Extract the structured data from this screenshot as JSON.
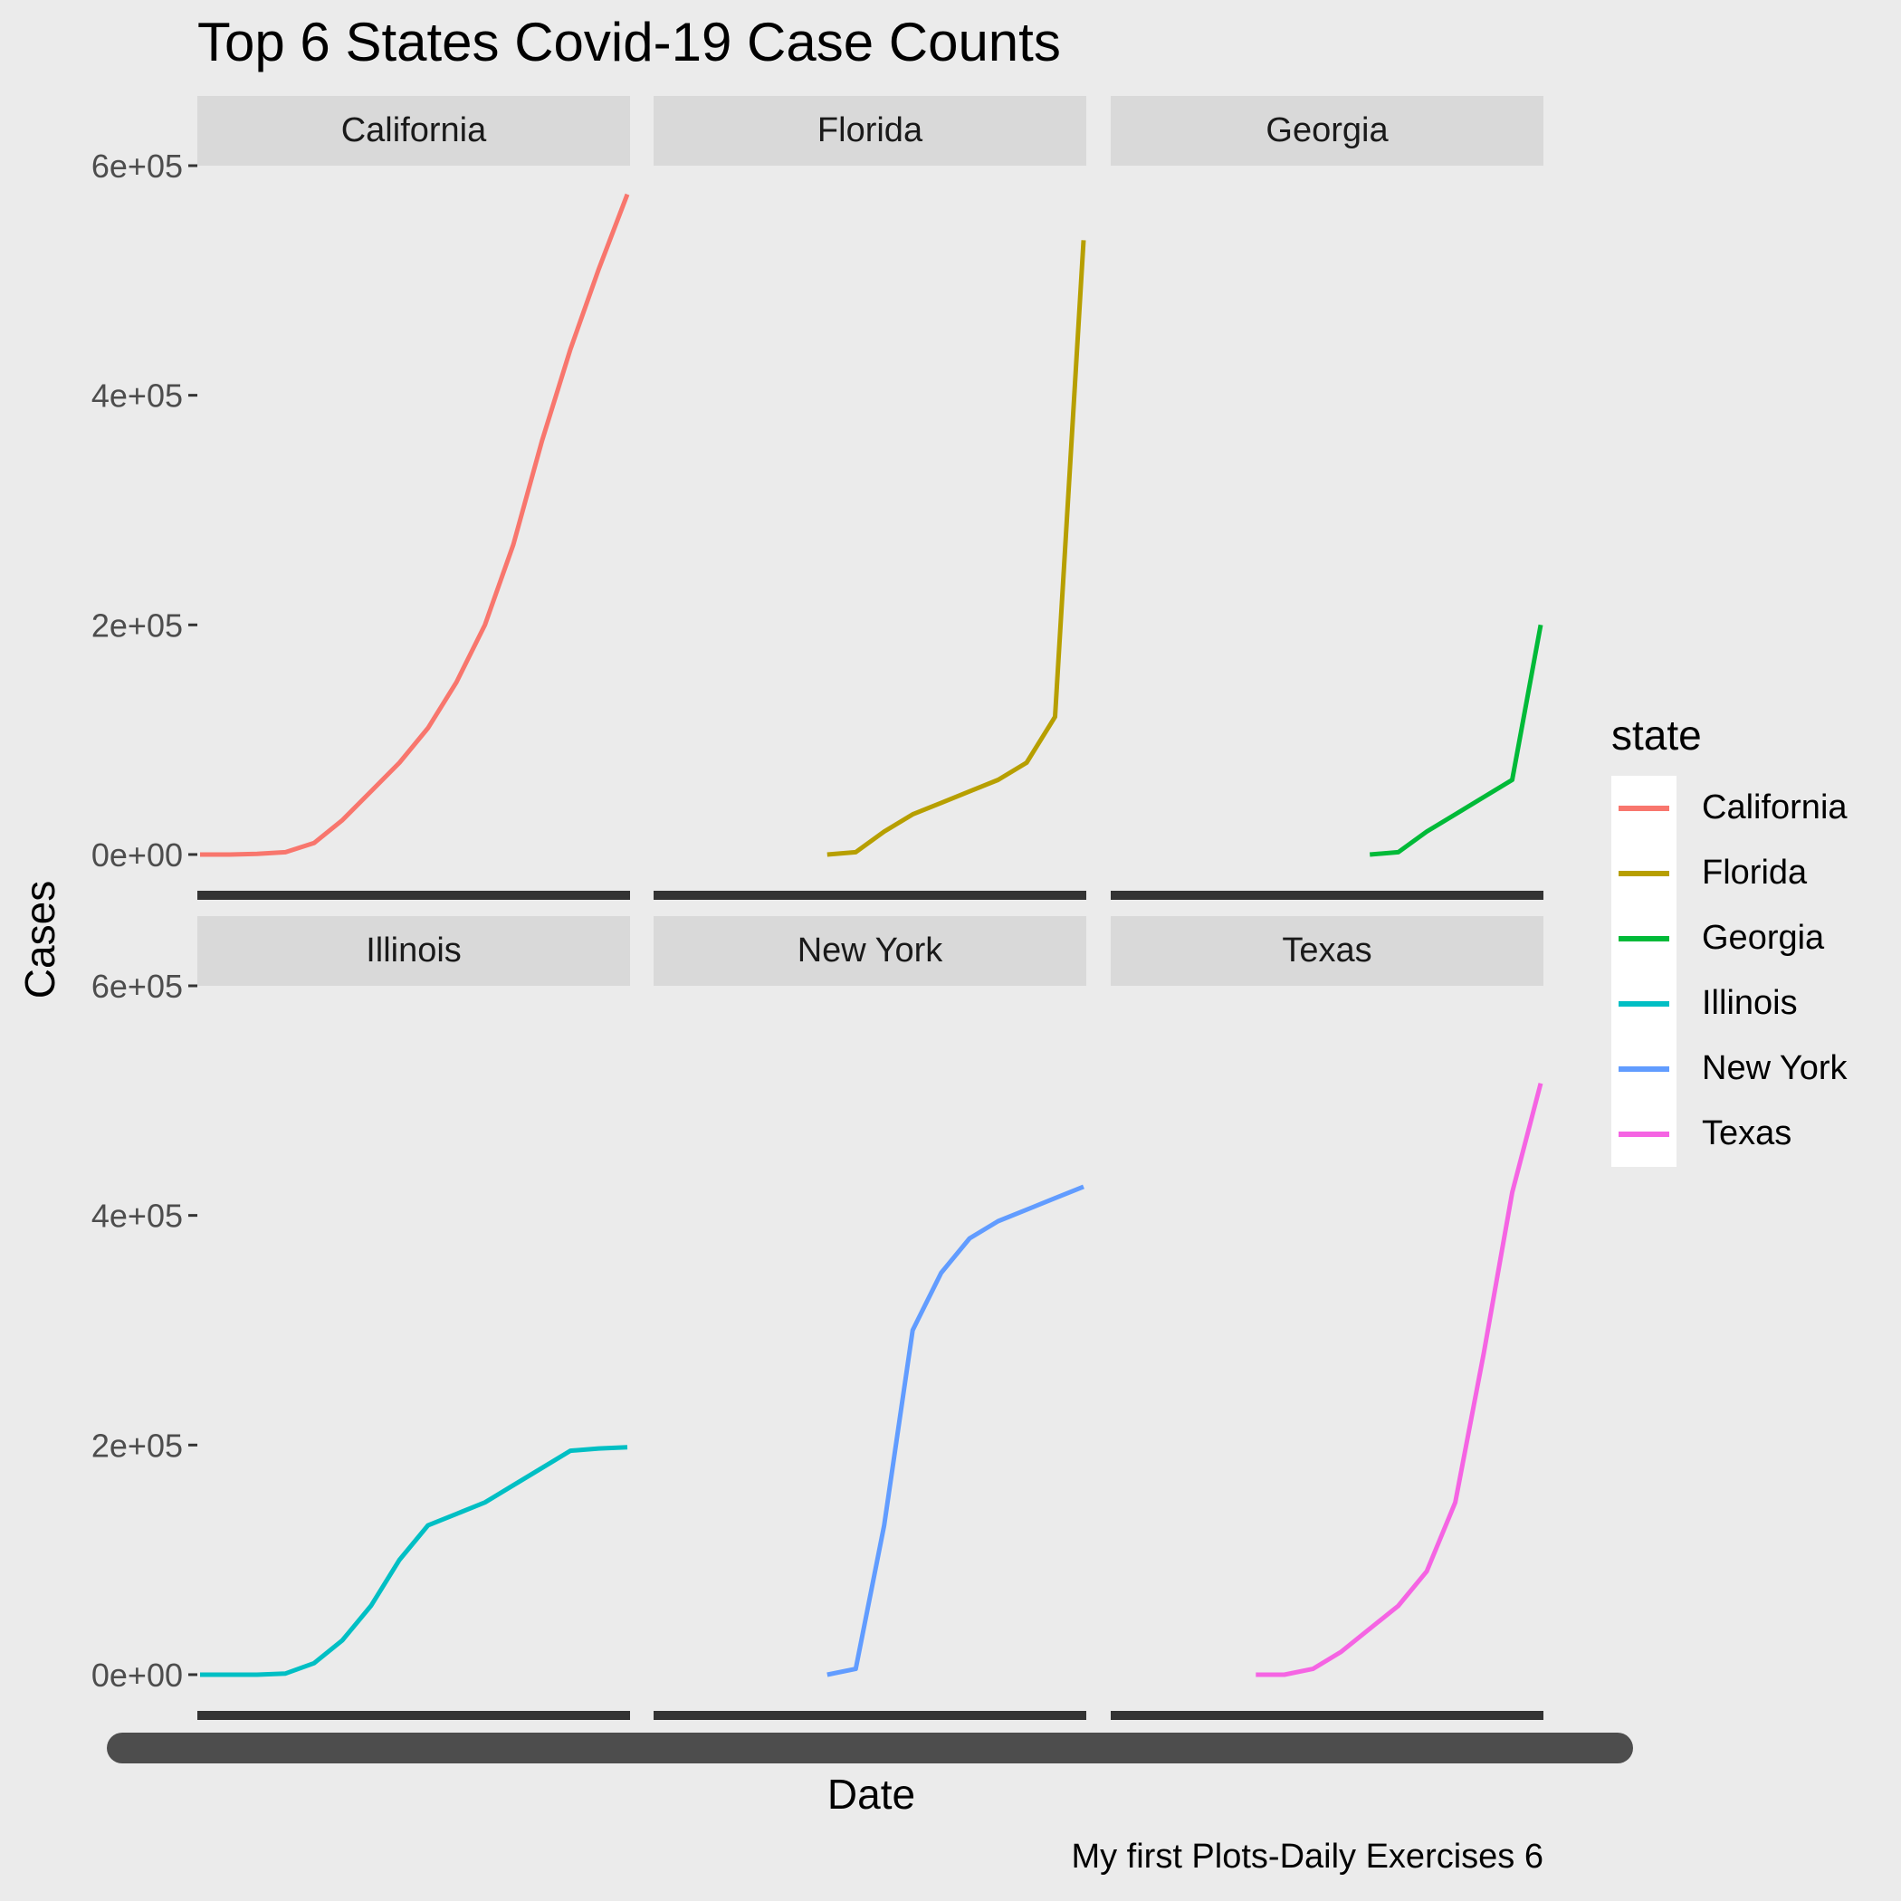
{
  "title": "Top 6 States Covid-19 Case Counts",
  "xlabel": "Date",
  "ylabel": "Cases",
  "caption": "My first Plots-Daily Exercises 6",
  "legend": {
    "title": "state",
    "placement": "right",
    "items": [
      {
        "label": "California",
        "color": "#F8766D"
      },
      {
        "label": "Florida",
        "color": "#B79F00"
      },
      {
        "label": "Georgia",
        "color": "#00BA38"
      },
      {
        "label": "Illinois",
        "color": "#00BFC4"
      },
      {
        "label": "New York",
        "color": "#619CFF"
      },
      {
        "label": "Texas",
        "color": "#F564E3"
      }
    ]
  },
  "chart_data": {
    "type": "line",
    "facets": [
      "California",
      "Florida",
      "Georgia",
      "Illinois",
      "New York",
      "Texas"
    ],
    "x": [
      0,
      10,
      20,
      30,
      40,
      50,
      60,
      70,
      80,
      90,
      100,
      110,
      120,
      130,
      140,
      150
    ],
    "ylim": [
      -30000,
      600000
    ],
    "yticks": [
      0,
      200000,
      400000,
      600000
    ],
    "ytick_labels": [
      "0e+00",
      "2e+05",
      "4e+05",
      "6e+05"
    ],
    "grid": true,
    "series": [
      {
        "name": "California",
        "color": "#F8766D",
        "values": [
          0,
          0,
          500,
          2000,
          10000,
          30000,
          55000,
          80000,
          110000,
          150000,
          200000,
          270000,
          360000,
          440000,
          510000,
          575000
        ]
      },
      {
        "name": "Florida",
        "color": "#B79F00",
        "values": [
          null,
          null,
          null,
          null,
          null,
          null,
          0,
          2000,
          20000,
          35000,
          45000,
          55000,
          65000,
          80000,
          120000,
          535000
        ]
      },
      {
        "name": "Georgia",
        "color": "#00BA38",
        "values": [
          null,
          null,
          null,
          null,
          null,
          null,
          null,
          null,
          null,
          0,
          2000,
          20000,
          35000,
          50000,
          65000,
          200000
        ]
      },
      {
        "name": "Illinois",
        "color": "#00BFC4",
        "values": [
          0,
          0,
          0,
          1000,
          10000,
          30000,
          60000,
          100000,
          130000,
          140000,
          150000,
          165000,
          180000,
          195000,
          197000,
          198000
        ]
      },
      {
        "name": "New York",
        "color": "#619CFF",
        "values": [
          null,
          null,
          null,
          null,
          null,
          null,
          0,
          5000,
          130000,
          300000,
          350000,
          380000,
          395000,
          405000,
          415000,
          425000
        ]
      },
      {
        "name": "Texas",
        "color": "#F564E3",
        "values": [
          null,
          null,
          null,
          null,
          null,
          0,
          0,
          5000,
          20000,
          40000,
          60000,
          90000,
          150000,
          280000,
          420000,
          515000
        ]
      }
    ]
  }
}
